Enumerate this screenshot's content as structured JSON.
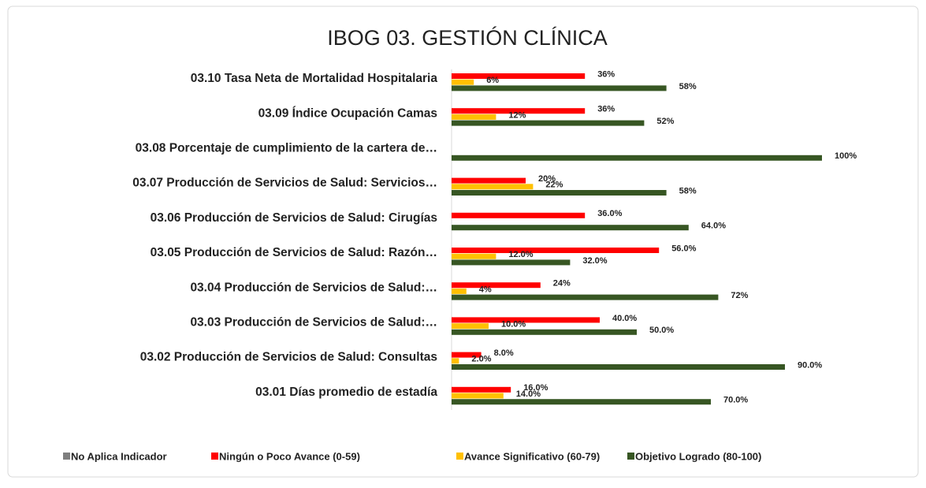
{
  "chart_data": {
    "type": "bar",
    "orientation": "horizontal",
    "title": "IBOG 03. GESTIÓN CLÍNICA",
    "categories": [
      "03.10 Tasa Neta de Mortalidad Hospitalaria",
      "03.09 Índice Ocupación Camas",
      "03.08 Porcentaje de cumplimiento de la cartera de…",
      "03.07 Producción de Servicios de Salud: Servicios…",
      "03.06 Producción de Servicios de Salud: Cirugías",
      "03.05 Producción de Servicios de Salud: Razón…",
      "03.04 Producción de Servicios de Salud:…",
      "03.03 Producción de Servicios de Salud:…",
      "03.02 Producción de Servicios de Salud: Consultas",
      "03.01 Días promedio de estadía"
    ],
    "series": [
      {
        "name": "No Aplica Indicador",
        "color": "#7f7f7f",
        "values": [
          null,
          null,
          null,
          null,
          null,
          null,
          null,
          null,
          null,
          null
        ]
      },
      {
        "name": "Ningún o Poco Avance (0-59)",
        "color": "#ff0000",
        "values": [
          36,
          36,
          null,
          20,
          36,
          56,
          24,
          40,
          8,
          16
        ],
        "value_labels": [
          "36%",
          "36%",
          null,
          "20%",
          "36.0%",
          "56.0%",
          "24%",
          "40.0%",
          "8.0%",
          "16.0%"
        ]
      },
      {
        "name": "Avance Significativo (60-79)",
        "color": "#ffc000",
        "values": [
          6,
          12,
          null,
          22,
          null,
          12,
          4,
          10,
          2,
          14
        ],
        "value_labels": [
          "6%",
          "12%",
          null,
          "22%",
          null,
          "12.0%",
          "4%",
          "10.0%",
          "2.0%",
          "14.0%"
        ]
      },
      {
        "name": "Objetivo Logrado (80-100)",
        "color": "#375623",
        "values": [
          58,
          52,
          100,
          58,
          64,
          32,
          72,
          50,
          90,
          70
        ],
        "value_labels": [
          "58%",
          "52%",
          "100%",
          "58%",
          "64.0%",
          "32.0%",
          "72%",
          "50.0%",
          "90.0%",
          "70.0%"
        ]
      }
    ],
    "legend": "bottom"
  }
}
